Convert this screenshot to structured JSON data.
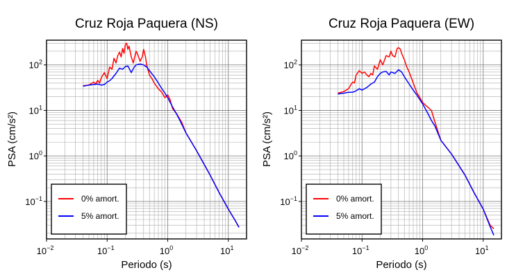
{
  "chart_data": [
    {
      "type": "line",
      "title": "Cruz Roja Paquera (NS)",
      "xlabel": "Periodo (s)",
      "ylabel": "PSA (cm/s²)",
      "xscale": "log",
      "yscale": "log",
      "xlim": [
        0.01,
        20
      ],
      "ylim": [
        0.015,
        350
      ],
      "x_ticks": [
        {
          "base": "10",
          "exp": "−2"
        },
        {
          "base": "10",
          "exp": "−1"
        },
        {
          "base": "10",
          "exp": "0"
        },
        {
          "base": "10",
          "exp": "1"
        }
      ],
      "y_ticks": [
        {
          "base": "10",
          "exp": "−1"
        },
        {
          "base": "10",
          "exp": "0"
        },
        {
          "base": "10",
          "exp": "1"
        },
        {
          "base": "10",
          "exp": "2"
        }
      ],
      "grid": true,
      "legend_position": "lower-left",
      "series": [
        {
          "name": "0% amort.",
          "color": "#ff0000",
          "x": [
            0.04,
            0.05,
            0.06,
            0.065,
            0.07,
            0.075,
            0.08,
            0.09,
            0.1,
            0.11,
            0.12,
            0.13,
            0.14,
            0.15,
            0.16,
            0.17,
            0.18,
            0.19,
            0.2,
            0.21,
            0.22,
            0.23,
            0.25,
            0.27,
            0.3,
            0.32,
            0.35,
            0.38,
            0.4,
            0.43,
            0.45,
            0.5,
            0.55,
            0.6,
            0.7,
            0.8,
            0.9,
            1.0,
            1.1,
            1.2,
            1.4,
            1.7,
            2,
            3,
            5,
            7,
            10,
            13,
            15
          ],
          "y": [
            35,
            36,
            42,
            38,
            46,
            40,
            52,
            68,
            50,
            90,
            80,
            140,
            110,
            160,
            190,
            150,
            230,
            180,
            280,
            300,
            220,
            260,
            150,
            110,
            200,
            170,
            120,
            150,
            220,
            150,
            100,
            60,
            50,
            40,
            30,
            25,
            19,
            22,
            17,
            11,
            8.5,
            5.5,
            3.2,
            1.3,
            0.38,
            0.16,
            0.068,
            0.038,
            0.027
          ]
        },
        {
          "name": "5% amort.",
          "color": "#0000ff",
          "x": [
            0.04,
            0.05,
            0.06,
            0.07,
            0.08,
            0.09,
            0.1,
            0.11,
            0.12,
            0.14,
            0.16,
            0.18,
            0.2,
            0.22,
            0.25,
            0.28,
            0.3,
            0.35,
            0.4,
            0.45,
            0.5,
            0.6,
            0.7,
            0.8,
            0.9,
            1.0,
            1.2,
            1.5,
            2,
            3,
            5,
            7,
            10,
            13,
            15
          ],
          "y": [
            34,
            36,
            37,
            38,
            36,
            37,
            42,
            45,
            50,
            65,
            85,
            80,
            92,
            95,
            68,
            90,
            100,
            105,
            100,
            90,
            75,
            55,
            40,
            30,
            24,
            19,
            12,
            7,
            3.2,
            1.3,
            0.38,
            0.16,
            0.068,
            0.038,
            0.027
          ]
        }
      ]
    },
    {
      "type": "line",
      "title": "Cruz Roja Paquera (EW)",
      "xlabel": "Periodo (s)",
      "ylabel": "PSA (cm/s²)",
      "xscale": "log",
      "yscale": "log",
      "xlim": [
        0.01,
        20
      ],
      "ylim": [
        0.015,
        350
      ],
      "x_ticks": [
        {
          "base": "10",
          "exp": "−2"
        },
        {
          "base": "10",
          "exp": "−1"
        },
        {
          "base": "10",
          "exp": "0"
        },
        {
          "base": "10",
          "exp": "1"
        }
      ],
      "y_ticks": [
        {
          "base": "10",
          "exp": "−1"
        },
        {
          "base": "10",
          "exp": "0"
        },
        {
          "base": "10",
          "exp": "1"
        },
        {
          "base": "10",
          "exp": "2"
        }
      ],
      "grid": true,
      "legend_position": "lower-left",
      "series": [
        {
          "name": "0% amort.",
          "color": "#ff0000",
          "x": [
            0.04,
            0.05,
            0.06,
            0.065,
            0.07,
            0.075,
            0.08,
            0.09,
            0.1,
            0.11,
            0.12,
            0.13,
            0.14,
            0.15,
            0.16,
            0.18,
            0.2,
            0.22,
            0.25,
            0.28,
            0.3,
            0.32,
            0.35,
            0.38,
            0.4,
            0.43,
            0.45,
            0.5,
            0.55,
            0.6,
            0.7,
            0.8,
            1.0,
            1.2,
            1.4,
            1.6,
            2,
            3,
            5,
            7,
            10,
            13,
            15
          ],
          "y": [
            24,
            26,
            30,
            36,
            42,
            40,
            60,
            75,
            65,
            70,
            60,
            55,
            65,
            60,
            95,
            80,
            130,
            100,
            160,
            150,
            200,
            160,
            150,
            230,
            240,
            220,
            180,
            130,
            90,
            70,
            40,
            25,
            15,
            12,
            10,
            5.5,
            2.2,
            1.1,
            0.38,
            0.16,
            0.068,
            0.03,
            0.025
          ]
        },
        {
          "name": "5% amort.",
          "color": "#0000ff",
          "x": [
            0.04,
            0.05,
            0.06,
            0.07,
            0.08,
            0.09,
            0.1,
            0.12,
            0.14,
            0.16,
            0.18,
            0.2,
            0.22,
            0.25,
            0.28,
            0.3,
            0.35,
            0.4,
            0.45,
            0.5,
            0.6,
            0.7,
            0.8,
            1.0,
            1.2,
            1.4,
            1.6,
            2,
            3,
            5,
            7,
            10,
            13,
            15
          ],
          "y": [
            23,
            24,
            25,
            25,
            27,
            30,
            28,
            32,
            38,
            42,
            55,
            65,
            70,
            72,
            60,
            70,
            65,
            78,
            70,
            55,
            38,
            28,
            22,
            14,
            9,
            6,
            4.5,
            2.2,
            1.1,
            0.38,
            0.16,
            0.068,
            0.028,
            0.018
          ]
        }
      ]
    }
  ]
}
